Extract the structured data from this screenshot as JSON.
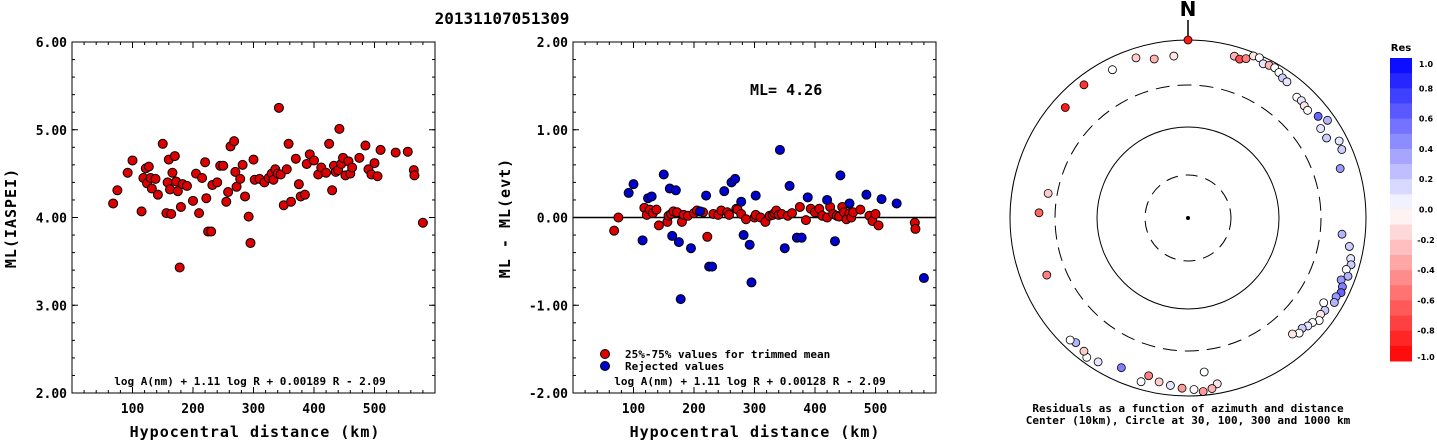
{
  "event_id": "20131107051309",
  "chart_data": [
    {
      "type": "scatter",
      "xlabel": "Hypocentral distance (km)",
      "ylabel": "ML(IASPEI)",
      "xlim": [
        0,
        600
      ],
      "ylim": [
        2.0,
        6.0
      ],
      "x_ticks": [
        "100",
        "200",
        "300",
        "400",
        "500"
      ],
      "y_ticks": [
        "2.00",
        "3.00",
        "4.00",
        "5.00",
        "6.00"
      ],
      "formula": "log A(nm) + 1.11 log R + 0.00189 R - 2.09",
      "series": [
        {
          "color": "#dd0000",
          "points": [
            [
              68,
              4.16
            ],
            [
              75,
              4.31
            ],
            [
              92,
              4.51
            ],
            [
              100,
              4.65
            ],
            [
              115,
              4.07
            ],
            [
              118,
              4.45
            ],
            [
              122,
              4.56
            ],
            [
              124,
              4.39
            ],
            [
              127,
              4.58
            ],
            [
              130,
              4.45
            ],
            [
              132,
              4.33
            ],
            [
              138,
              4.44
            ],
            [
              142,
              4.26
            ],
            [
              150,
              4.84
            ],
            [
              156,
              4.05
            ],
            [
              158,
              4.4
            ],
            [
              160,
              4.66
            ],
            [
              162,
              4.32
            ],
            [
              164,
              4.04
            ],
            [
              166,
              4.51
            ],
            [
              170,
              4.7
            ],
            [
              172,
              4.41
            ],
            [
              175,
              4.3
            ],
            [
              178,
              3.43
            ],
            [
              180,
              4.12
            ],
            [
              183,
              4.38
            ],
            [
              190,
              4.36
            ],
            [
              200,
              4.19
            ],
            [
              205,
              4.5
            ],
            [
              210,
              4.05
            ],
            [
              215,
              4.45
            ],
            [
              220,
              4.63
            ],
            [
              222,
              4.22
            ],
            [
              225,
              3.84
            ],
            [
              230,
              3.84
            ],
            [
              232,
              4.37
            ],
            [
              240,
              4.4
            ],
            [
              245,
              4.59
            ],
            [
              250,
              4.59
            ],
            [
              255,
              4.18
            ],
            [
              258,
              4.29
            ],
            [
              262,
              4.81
            ],
            [
              268,
              4.87
            ],
            [
              270,
              4.52
            ],
            [
              272,
              4.35
            ],
            [
              278,
              4.44
            ],
            [
              282,
              4.6
            ],
            [
              286,
              4.24
            ],
            [
              292,
              4.01
            ],
            [
              295,
              3.71
            ],
            [
              300,
              4.66
            ],
            [
              302,
              4.43
            ],
            [
              310,
              4.44
            ],
            [
              318,
              4.4
            ],
            [
              325,
              4.45
            ],
            [
              330,
              4.5
            ],
            [
              333,
              4.43
            ],
            [
              336,
              4.55
            ],
            [
              340,
              4.5
            ],
            [
              342,
              5.25
            ],
            [
              345,
              4.49
            ],
            [
              350,
              4.14
            ],
            [
              355,
              4.55
            ],
            [
              358,
              4.84
            ],
            [
              362,
              4.18
            ],
            [
              370,
              4.67
            ],
            [
              375,
              4.38
            ],
            [
              378,
              4.24
            ],
            [
              385,
              4.26
            ],
            [
              388,
              4.61
            ],
            [
              393,
              4.72
            ],
            [
              400,
              4.65
            ],
            [
              407,
              4.49
            ],
            [
              412,
              4.57
            ],
            [
              420,
              4.51
            ],
            [
              425,
              4.84
            ],
            [
              430,
              4.31
            ],
            [
              433,
              4.59
            ],
            [
              436,
              4.52
            ],
            [
              440,
              4.54
            ],
            [
              442,
              5.01
            ],
            [
              445,
              4.61
            ],
            [
              448,
              4.68
            ],
            [
              452,
              4.48
            ],
            [
              457,
              4.64
            ],
            [
              460,
              4.5
            ],
            [
              463,
              4.57
            ],
            [
              475,
              4.68
            ],
            [
              485,
              4.82
            ],
            [
              490,
              4.55
            ],
            [
              495,
              4.49
            ],
            [
              500,
              4.62
            ],
            [
              505,
              4.47
            ],
            [
              510,
              4.77
            ],
            [
              535,
              4.74
            ],
            [
              555,
              4.75
            ],
            [
              565,
              4.54
            ],
            [
              566,
              4.48
            ],
            [
              580,
              3.94
            ]
          ]
        }
      ]
    },
    {
      "type": "scatter",
      "xlabel": "Hypocentral distance (km)",
      "ylabel": "ML - ML(evt)",
      "xlim": [
        0,
        600
      ],
      "ylim": [
        -2.0,
        2.0
      ],
      "x_ticks": [
        "100",
        "200",
        "300",
        "400",
        "500"
      ],
      "y_ticks": [
        "-2.00",
        "-1.00",
        "0.00",
        "1.00",
        "2.00"
      ],
      "ml_label": "ML=  4.26",
      "formula": "log A(nm) + 1.11 log R + 0.00128 R - 2.09",
      "legend": [
        "25%-75% values for trimmed mean",
        "Rejected values"
      ],
      "series": [
        {
          "name": "25%-75% values for trimmed mean",
          "color": "#dd0000",
          "points": [
            [
              68,
              -0.15
            ],
            [
              75,
              0.0
            ],
            [
              118,
              0.11
            ],
            [
              122,
              0.03
            ],
            [
              127,
              0.09
            ],
            [
              132,
              0.05
            ],
            [
              138,
              0.09
            ],
            [
              142,
              -0.09
            ],
            [
              156,
              -0.05
            ],
            [
              158,
              0.02
            ],
            [
              162,
              0.04
            ],
            [
              166,
              0.07
            ],
            [
              172,
              0.06
            ],
            [
              180,
              -0.05
            ],
            [
              183,
              0.03
            ],
            [
              190,
              0.02
            ],
            [
              200,
              0.05
            ],
            [
              205,
              0.08
            ],
            [
              215,
              0.06
            ],
            [
              222,
              -0.22
            ],
            [
              232,
              0.04
            ],
            [
              240,
              0.03
            ],
            [
              245,
              0.08
            ],
            [
              255,
              0.06
            ],
            [
              258,
              0.03
            ],
            [
              270,
              0.1
            ],
            [
              272,
              0.09
            ],
            [
              278,
              0.04
            ],
            [
              286,
              -0.02
            ],
            [
              300,
              0.0
            ],
            [
              302,
              0.03
            ],
            [
              310,
              0.0
            ],
            [
              318,
              -0.05
            ],
            [
              325,
              0.02
            ],
            [
              330,
              0.03
            ],
            [
              333,
              0.05
            ],
            [
              336,
              0.08
            ],
            [
              340,
              0.03
            ],
            [
              345,
              0.04
            ],
            [
              355,
              0.02
            ],
            [
              362,
              0.05
            ],
            [
              375,
              0.12
            ],
            [
              385,
              -0.03
            ],
            [
              393,
              0.1
            ],
            [
              400,
              0.06
            ],
            [
              407,
              0.1
            ],
            [
              412,
              0.02
            ],
            [
              420,
              0.0
            ],
            [
              425,
              0.12
            ],
            [
              430,
              0.04
            ],
            [
              436,
              0.02
            ],
            [
              440,
              0.01
            ],
            [
              445,
              0.12
            ],
            [
              448,
              0.06
            ],
            [
              452,
              -0.02
            ],
            [
              457,
              0.05
            ],
            [
              460,
              0.0
            ],
            [
              463,
              0.06
            ],
            [
              475,
              0.09
            ],
            [
              490,
              0.02
            ],
            [
              495,
              -0.04
            ],
            [
              500,
              0.04
            ],
            [
              505,
              -0.09
            ],
            [
              565,
              -0.06
            ],
            [
              566,
              -0.13
            ]
          ]
        },
        {
          "name": "Rejected values",
          "color": "#0000cc",
          "points": [
            [
              92,
              0.28
            ],
            [
              100,
              0.38
            ],
            [
              115,
              -0.26
            ],
            [
              124,
              0.22
            ],
            [
              130,
              0.24
            ],
            [
              150,
              0.49
            ],
            [
              160,
              0.33
            ],
            [
              164,
              -0.21
            ],
            [
              170,
              0.31
            ],
            [
              175,
              -0.28
            ],
            [
              178,
              -0.93
            ],
            [
              195,
              -0.35
            ],
            [
              210,
              0.07
            ],
            [
              220,
              0.25
            ],
            [
              225,
              -0.56
            ],
            [
              230,
              -0.56
            ],
            [
              250,
              0.3
            ],
            [
              262,
              0.4
            ],
            [
              268,
              0.44
            ],
            [
              278,
              0.18
            ],
            [
              282,
              -0.2
            ],
            [
              292,
              -0.31
            ],
            [
              295,
              -0.74
            ],
            [
              302,
              0.25
            ],
            [
              342,
              0.77
            ],
            [
              350,
              -0.35
            ],
            [
              358,
              0.36
            ],
            [
              370,
              -0.23
            ],
            [
              378,
              -0.23
            ],
            [
              388,
              0.23
            ],
            [
              420,
              0.2
            ],
            [
              433,
              -0.27
            ],
            [
              442,
              0.48
            ],
            [
              457,
              0.16
            ],
            [
              485,
              0.26
            ],
            [
              510,
              0.21
            ],
            [
              535,
              0.16
            ],
            [
              580,
              -0.69
            ]
          ]
        }
      ]
    }
  ],
  "polar": {
    "north_label": "N",
    "caption_line1": "Residuals as a function of azimuth and distance",
    "caption_line2": "Center (10km), Circle at 30, 100, 300 and 1000 km",
    "stations": [
      [
        0,
        1000,
        -0.9
      ],
      [
        16,
        850,
        -0.3
      ],
      [
        22,
        950,
        -0.1
      ],
      [
        24,
        960,
        0.0
      ],
      [
        26,
        900,
        0.1
      ],
      [
        28,
        920,
        -0.3
      ],
      [
        30,
        930,
        0.0
      ],
      [
        32,
        900,
        0.0
      ],
      [
        34,
        860,
        0.2
      ],
      [
        36,
        850,
        0.1
      ],
      [
        18,
        830,
        -0.7
      ],
      [
        20,
        870,
        -0.5
      ],
      [
        42,
        760,
        0.0
      ],
      [
        44,
        770,
        0.1
      ],
      [
        46,
        745,
        -0.1
      ],
      [
        48,
        735,
        0.0
      ],
      [
        52,
        800,
        0.6
      ],
      [
        55,
        880,
        0.3
      ],
      [
        56,
        720,
        0.1
      ],
      [
        60,
        720,
        0.2
      ],
      [
        63,
        870,
        0.1
      ],
      [
        66,
        850,
        0.2
      ],
      [
        72,
        720,
        0.4
      ],
      [
        96,
        640,
        0.3
      ],
      [
        100,
        780,
        0.2
      ],
      [
        104,
        840,
        0.1
      ],
      [
        106,
        870,
        0.2
      ],
      [
        108,
        820,
        0.0
      ],
      [
        110,
        880,
        0.3
      ],
      [
        112,
        800,
        0.4
      ],
      [
        114,
        860,
        0.5
      ],
      [
        116,
        880,
        0.6
      ],
      [
        118,
        840,
        0.4
      ],
      [
        120,
        860,
        0.3
      ],
      [
        122,
        720,
        0.0
      ],
      [
        124,
        800,
        0.2
      ],
      [
        126,
        780,
        -0.1
      ],
      [
        128,
        820,
        0.0
      ],
      [
        130,
        760,
        0.0
      ],
      [
        132,
        740,
        0.1
      ],
      [
        134,
        700,
        0.2
      ],
      [
        136,
        720,
        0.0
      ],
      [
        138,
        660,
        -0.1
      ],
      [
        174,
        640,
        0.0
      ],
      [
        170,
        850,
        -0.1
      ],
      [
        172,
        910,
        -0.3
      ],
      [
        175,
        940,
        -0.4
      ],
      [
        178,
        900,
        0.0
      ],
      [
        182,
        880,
        -0.4
      ],
      [
        186,
        850,
        0.1
      ],
      [
        190,
        820,
        -0.2
      ],
      [
        194,
        760,
        -0.5
      ],
      [
        196,
        880,
        0.0
      ],
      [
        204,
        780,
        0.5
      ],
      [
        212,
        870,
        0.1
      ],
      [
        216,
        910,
        0.0
      ],
      [
        218,
        860,
        -0.2
      ],
      [
        222,
        840,
        0.3
      ],
      [
        224,
        870,
        0.0
      ],
      [
        248,
        600,
        -0.5
      ],
      [
        272,
        550,
        -0.6
      ],
      [
        280,
        440,
        -0.2
      ],
      [
        312,
        800,
        -0.9
      ],
      [
        322,
        860,
        -0.8
      ],
      [
        333,
        820,
        0.0
      ],
      [
        342,
        850,
        -0.2
      ],
      [
        348,
        760,
        -0.3
      ],
      [
        355,
        760,
        -0.1
      ]
    ]
  },
  "colorbar": {
    "title": "Res",
    "ticks": [
      "1.0",
      "0.8",
      "0.6",
      "0.4",
      "0.2",
      "0.0",
      "-0.2",
      "-0.4",
      "-0.6",
      "-0.8",
      "-1.0"
    ]
  }
}
